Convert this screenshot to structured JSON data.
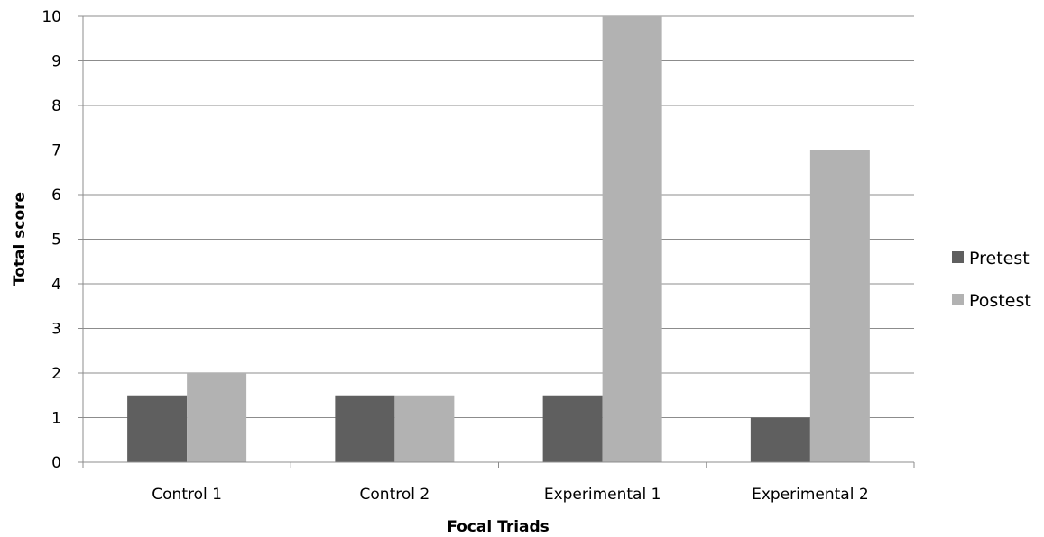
{
  "chart_data": {
    "type": "bar",
    "title": "",
    "xlabel": "Focal Triads",
    "ylabel": "Total score",
    "categories": [
      "Control 1",
      "Control 2",
      "Experimental 1",
      "Experimental 2"
    ],
    "series": [
      {
        "name": "Pretest",
        "color": "#5f5f5f",
        "values": [
          1.5,
          1.5,
          1.5,
          1
        ]
      },
      {
        "name": "Postest",
        "color": "#b2b2b2",
        "values": [
          2,
          1.5,
          10,
          7
        ]
      }
    ],
    "ylim": [
      0,
      10
    ],
    "yticks": [
      "0",
      "1",
      "2",
      "3",
      "4",
      "5",
      "6",
      "7",
      "8",
      "9",
      "10"
    ],
    "grid": true,
    "legend": "right"
  }
}
